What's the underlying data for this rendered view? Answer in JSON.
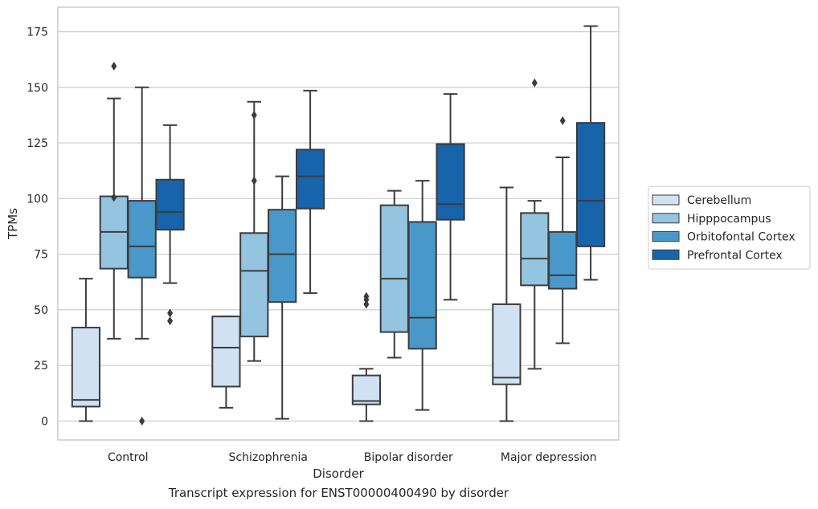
{
  "chart_data": {
    "type": "box",
    "caption": "Transcript expression for ENST00000400490 by disorder",
    "xlabel": "Disorder",
    "ylabel": "TPMs",
    "ylim": [
      -8.5,
      186
    ],
    "yticks": [
      0,
      25,
      50,
      75,
      100,
      125,
      150,
      175
    ],
    "grid": "horizontal",
    "legend_position": "right",
    "categories": [
      "Control",
      "Schizophrenia",
      "Bipolar disorder",
      "Major depression"
    ],
    "series": [
      {
        "name": "Cerebellum",
        "color": "#d0e1f2",
        "boxes": [
          {
            "whisker_low": 0,
            "q1": 6.5,
            "median": 9.5,
            "q3": 42,
            "whisker_high": 64,
            "outliers": []
          },
          {
            "whisker_low": 6,
            "q1": 15.5,
            "median": 33,
            "q3": 47,
            "whisker_high": 47,
            "outliers": []
          },
          {
            "whisker_low": 0,
            "q1": 7.5,
            "median": 9,
            "q3": 20.5,
            "whisker_high": 23.5,
            "outliers": [
              52.5,
              54.5,
              56
            ]
          },
          {
            "whisker_low": 0,
            "q1": 16.5,
            "median": 19.5,
            "q3": 52.5,
            "whisker_high": 105,
            "outliers": []
          }
        ]
      },
      {
        "name": "Hipppocampus",
        "color": "#94c4df",
        "boxes": [
          {
            "whisker_low": 37,
            "q1": 68.5,
            "median": 85,
            "q3": 101,
            "whisker_high": 145,
            "outliers": [
              100.5,
              159.5
            ]
          },
          {
            "whisker_low": 27,
            "q1": 38,
            "median": 67.5,
            "q3": 84.5,
            "whisker_high": 143.5,
            "outliers": [
              108,
              137.5
            ]
          },
          {
            "whisker_low": 28.5,
            "q1": 40,
            "median": 64,
            "q3": 97,
            "whisker_high": 103.5,
            "outliers": []
          },
          {
            "whisker_low": 23.5,
            "q1": 61,
            "median": 73,
            "q3": 93.5,
            "whisker_high": 99,
            "outliers": [
              152
            ]
          }
        ]
      },
      {
        "name": "Orbitofontal Cortex",
        "color": "#4a98c9",
        "boxes": [
          {
            "whisker_low": 37,
            "q1": 64.5,
            "median": 78.5,
            "q3": 99,
            "whisker_high": 150,
            "outliers": [
              0
            ]
          },
          {
            "whisker_low": 1,
            "q1": 53.5,
            "median": 75,
            "q3": 95,
            "whisker_high": 110,
            "outliers": []
          },
          {
            "whisker_low": 5,
            "q1": 32.5,
            "median": 46.5,
            "q3": 89.5,
            "whisker_high": 108,
            "outliers": []
          },
          {
            "whisker_low": 35,
            "q1": 59.5,
            "median": 65.5,
            "q3": 85,
            "whisker_high": 118.5,
            "outliers": [
              135
            ]
          }
        ]
      },
      {
        "name": "Prefrontal Cortex",
        "color": "#1864aa",
        "boxes": [
          {
            "whisker_low": 62,
            "q1": 86,
            "median": 94,
            "q3": 108.5,
            "whisker_high": 133,
            "outliers": [
              45,
              48.5
            ]
          },
          {
            "whisker_low": 57.5,
            "q1": 95.5,
            "median": 110,
            "q3": 122,
            "whisker_high": 148.5,
            "outliers": []
          },
          {
            "whisker_low": 54.5,
            "q1": 90.5,
            "median": 97.5,
            "q3": 124.5,
            "whisker_high": 147,
            "outliers": []
          },
          {
            "whisker_low": 63.5,
            "q1": 78.5,
            "median": 99,
            "q3": 134,
            "whisker_high": 177.5,
            "outliers": []
          }
        ]
      }
    ]
  }
}
